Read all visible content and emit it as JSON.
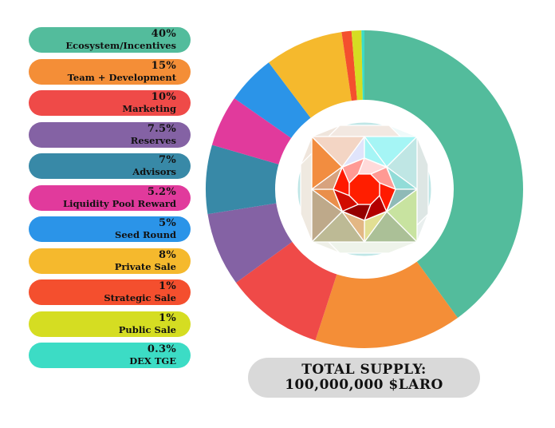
{
  "chart_data": {
    "type": "pie",
    "subtype": "donut",
    "title": "",
    "start": "top",
    "direction": "clockwise",
    "categories": [
      "Ecosystem/Incentives",
      "Team + Development",
      "Marketing",
      "Reserves",
      "Advisors",
      "Liquidity Pool Reward",
      "Seed Round",
      "Private Sale",
      "Strategic Sale",
      "Public Sale",
      "DEX TGE"
    ],
    "values": [
      40,
      15,
      10,
      7.5,
      7,
      5.2,
      5,
      8,
      1,
      1,
      0.3
    ],
    "value_labels": [
      "40%",
      "15%",
      "10%",
      "7.5%",
      "7%",
      "5.2%",
      "5%",
      "8%",
      "1%",
      "1%",
      "0.3%"
    ],
    "colors": [
      "#53bc9c",
      "#f48e37",
      "#ef4a48",
      "#8462a4",
      "#3889a7",
      "#e13a9c",
      "#2b94e8",
      "#f5b92d",
      "#f44f2e",
      "#d5dd22",
      "#3cdcc5"
    ],
    "legend": "left",
    "center_graphic": "gem-logo"
  },
  "total_supply": {
    "line1": "TOTAL SUPPLY:",
    "line2": "100,000,000 $LARO"
  }
}
